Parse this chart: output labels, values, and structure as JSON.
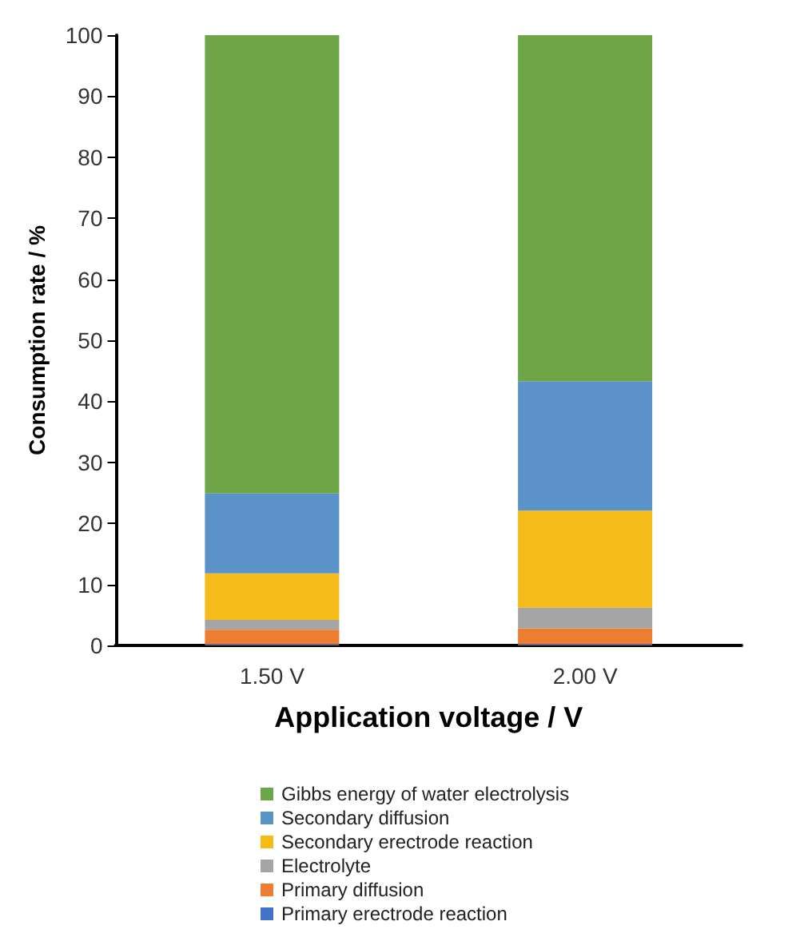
{
  "chart_data": {
    "type": "bar",
    "stacked": true,
    "xlabel": "Application voltage / V",
    "ylabel": "Consumption rate / %",
    "categories": [
      "1.50 V",
      "2.00 V"
    ],
    "series": [
      {
        "name": "Primary erectrode reaction",
        "color": "#4472c4",
        "values": [
          0.2,
          0.2
        ]
      },
      {
        "name": "Primary diffusion",
        "color": "#ed7d31",
        "values": [
          2.4,
          2.6
        ]
      },
      {
        "name": "Electrolyte",
        "color": "#a5a5a5",
        "values": [
          1.6,
          3.4
        ]
      },
      {
        "name": "Secondary erectrode reaction",
        "color": "#f5bb1a",
        "values": [
          7.6,
          15.9
        ]
      },
      {
        "name": "Secondary diffusion",
        "color": "#5b93c9",
        "values": [
          13.1,
          21.2
        ]
      },
      {
        "name": "Gibbs energy of water electrolysis",
        "color": "#6ea647",
        "values": [
          75.1,
          56.7
        ]
      }
    ],
    "ylim": [
      0,
      100
    ],
    "yticks": [
      0,
      10,
      20,
      30,
      40,
      50,
      60,
      70,
      80,
      90,
      100
    ],
    "legend": "bottom",
    "grid": false
  }
}
